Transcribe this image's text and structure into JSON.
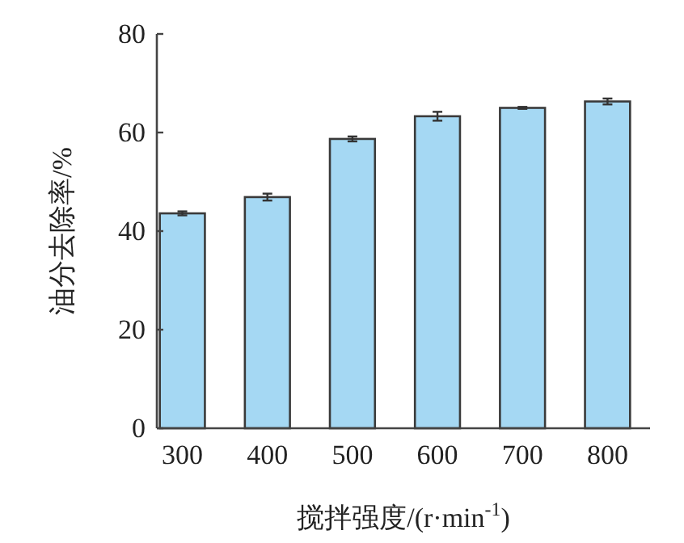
{
  "chart_data": {
    "type": "bar",
    "xlabel": "搅拌强度/(r·min$^{-1}$)",
    "ylabel": "油分去除率/%",
    "categories": [
      "300",
      "400",
      "500",
      "600",
      "700",
      "800"
    ],
    "values": [
      43.6,
      46.9,
      58.7,
      63.3,
      65.0,
      66.3
    ],
    "errors": [
      0.4,
      0.7,
      0.5,
      0.9,
      0.2,
      0.6
    ],
    "color": "#a5d8f3",
    "ylim": [
      0,
      80
    ],
    "yticks": [
      0,
      20,
      40,
      60,
      80
    ]
  }
}
